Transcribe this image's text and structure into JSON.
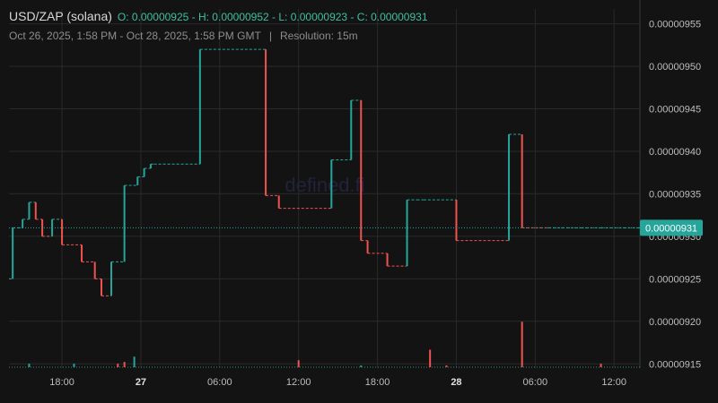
{
  "header": {
    "symbol": "USD/ZAP (solana)",
    "ohlc": "O: 0.00000925 - H: 0.00000952 - L: 0.00000923 - C: 0.00000931",
    "range": "Oct 26, 2025, 1:58 PM - Oct 28, 2025, 1:58 PM GMT",
    "separator": "|",
    "resolution": "Resolution: 15m"
  },
  "watermark": "defined.fi",
  "colors": {
    "background": "#131313",
    "up": "#26a69a",
    "down": "#ef5350",
    "grid": "#2a2a2a",
    "text": "#bdbdbd",
    "last_price": "#26a69a"
  },
  "chart_data": {
    "type": "line",
    "style": "step",
    "x_tick_labels": [
      "18:00",
      "27",
      "06:00",
      "12:00",
      "18:00",
      "28",
      "06:00",
      "12:00"
    ],
    "y_tick_labels": [
      "0.00000915",
      "0.00000920",
      "0.00000925",
      "0.00000930",
      "0.00000935",
      "0.00000940",
      "0.00000945",
      "0.00000950",
      "0.00000955"
    ],
    "ylim": [
      9.145e-06,
      9.5675e-06
    ],
    "last_price": 9.31e-06,
    "last_price_label": "0.00000931",
    "grid": true,
    "x": [
      "2025-10-26T13:58",
      "2025-10-26T14:15",
      "2025-10-26T15:00",
      "2025-10-26T15:30",
      "2025-10-26T16:00",
      "2025-10-26T16:30",
      "2025-10-26T17:15",
      "2025-10-26T18:00",
      "2025-10-26T19:30",
      "2025-10-26T20:30",
      "2025-10-26T21:00",
      "2025-10-26T21:45",
      "2025-10-26T22:45",
      "2025-10-26T23:45",
      "2025-10-27T00:15",
      "2025-10-27T00:45",
      "2025-10-27T01:00",
      "2025-10-27T04:30",
      "2025-10-27T09:30",
      "2025-10-27T10:30",
      "2025-10-27T14:30",
      "2025-10-27T16:00",
      "2025-10-27T16:45",
      "2025-10-27T17:15",
      "2025-10-27T18:45",
      "2025-10-27T20:15",
      "2025-10-27T21:00",
      "2025-10-27T21:30",
      "2025-10-28T00:00",
      "2025-10-28T04:00",
      "2025-10-28T05:00",
      "2025-10-28T07:00",
      "2025-10-28T09:00",
      "2025-10-28T09:30",
      "2025-10-28T11:00",
      "2025-10-28T13:58"
    ],
    "values": [
      9.25e-06,
      9.31e-06,
      9.32e-06,
      9.34e-06,
      9.32e-06,
      9.3e-06,
      9.32e-06,
      9.29e-06,
      9.27e-06,
      9.25e-06,
      9.23e-06,
      9.27e-06,
      9.36e-06,
      9.37e-06,
      9.38e-06,
      9.385e-06,
      9.385e-06,
      9.52e-06,
      9.348e-06,
      9.333e-06,
      9.39e-06,
      9.46e-06,
      9.295e-06,
      9.28e-06,
      9.265e-06,
      9.343e-06,
      9.343e-06,
      9.343e-06,
      9.295e-06,
      9.42e-06,
      9.31e-06,
      9.31e-06,
      9.31e-06,
      9.31e-06,
      9.31e-06,
      9.31e-06
    ],
    "volume_bars_up": [
      [
        "2025-10-26T18:55",
        1
      ],
      [
        "2025-10-26T23:30",
        3
      ],
      [
        "2025-10-26T15:30",
        1
      ],
      [
        "2025-10-27T16:45",
        0.5
      ]
    ],
    "volume_bars_down": [
      [
        "2025-10-26T22:15",
        1
      ],
      [
        "2025-10-27T12:00",
        2
      ],
      [
        "2025-10-27T22:00",
        5
      ],
      [
        "2025-10-28T05:00",
        13
      ],
      [
        "2025-10-28T11:00",
        1
      ],
      [
        "2025-10-26T22:45",
        1.5
      ],
      [
        "2025-10-27T23:15",
        0.5
      ]
    ]
  }
}
